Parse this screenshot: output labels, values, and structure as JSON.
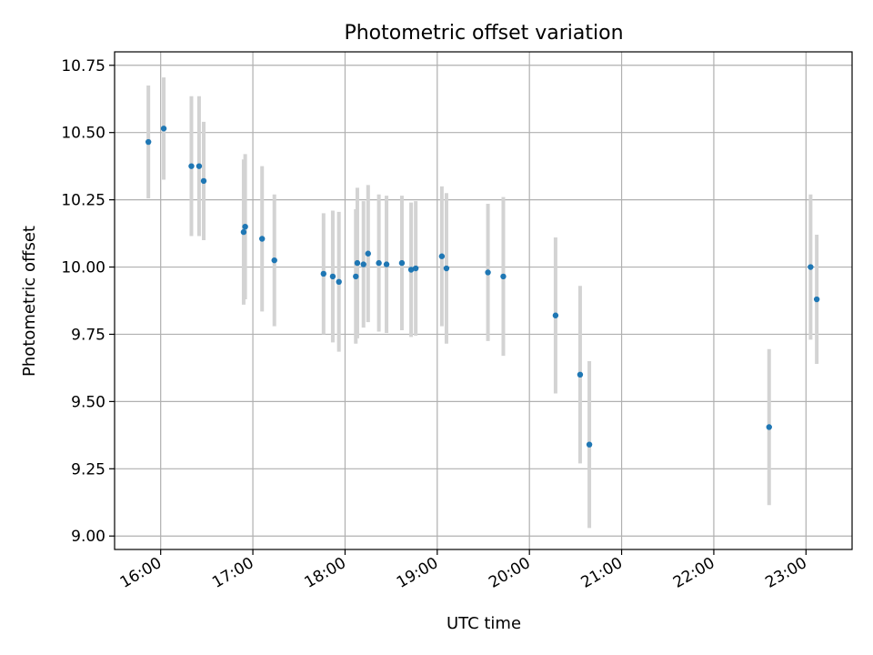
{
  "chart_data": {
    "type": "scatter",
    "title": "Photometric offset variation",
    "xlabel": "UTC time",
    "ylabel": "Photometric offset",
    "x_tick_labels": [
      "16:00",
      "17:00",
      "18:00",
      "19:00",
      "20:00",
      "21:00",
      "22:00",
      "23:00"
    ],
    "y_tick_labels": [
      "9.00",
      "9.25",
      "9.50",
      "9.75",
      "10.00",
      "10.25",
      "10.50",
      "10.75"
    ],
    "xlim": [
      "15:30",
      "23:30"
    ],
    "ylim": [
      8.95,
      10.8
    ],
    "grid": true,
    "colors": {
      "marker": "#1f77b4",
      "errorbar": "#d3d3d3",
      "grid": "#b0b0b0"
    },
    "points": [
      {
        "x": "15:52",
        "y": 10.465,
        "err": 0.21
      },
      {
        "x": "16:02",
        "y": 10.515,
        "err": 0.19
      },
      {
        "x": "16:20",
        "y": 10.375,
        "err": 0.26
      },
      {
        "x": "16:25",
        "y": 10.375,
        "err": 0.26
      },
      {
        "x": "16:28",
        "y": 10.32,
        "err": 0.22
      },
      {
        "x": "16:54",
        "y": 10.13,
        "err": 0.27
      },
      {
        "x": "16:55",
        "y": 10.15,
        "err": 0.27
      },
      {
        "x": "17:06",
        "y": 10.105,
        "err": 0.27
      },
      {
        "x": "17:14",
        "y": 10.025,
        "err": 0.245
      },
      {
        "x": "17:46",
        "y": 9.975,
        "err": 0.225
      },
      {
        "x": "17:52",
        "y": 9.965,
        "err": 0.245
      },
      {
        "x": "17:56",
        "y": 9.945,
        "err": 0.26
      },
      {
        "x": "18:07",
        "y": 9.965,
        "err": 0.25
      },
      {
        "x": "18:08",
        "y": 10.015,
        "err": 0.28
      },
      {
        "x": "18:12",
        "y": 10.01,
        "err": 0.235
      },
      {
        "x": "18:15",
        "y": 10.05,
        "err": 0.255
      },
      {
        "x": "18:22",
        "y": 10.015,
        "err": 0.255
      },
      {
        "x": "18:27",
        "y": 10.01,
        "err": 0.255
      },
      {
        "x": "18:37",
        "y": 10.015,
        "err": 0.25
      },
      {
        "x": "18:43",
        "y": 9.99,
        "err": 0.25
      },
      {
        "x": "18:46",
        "y": 9.995,
        "err": 0.25
      },
      {
        "x": "19:03",
        "y": 10.04,
        "err": 0.26
      },
      {
        "x": "19:06",
        "y": 9.995,
        "err": 0.28
      },
      {
        "x": "19:33",
        "y": 9.98,
        "err": 0.255
      },
      {
        "x": "19:43",
        "y": 9.965,
        "err": 0.295
      },
      {
        "x": "20:17",
        "y": 9.82,
        "err": 0.29
      },
      {
        "x": "20:33",
        "y": 9.6,
        "err": 0.33
      },
      {
        "x": "20:39",
        "y": 9.34,
        "err": 0.31
      },
      {
        "x": "22:36",
        "y": 9.405,
        "err": 0.29
      },
      {
        "x": "23:03",
        "y": 10.0,
        "err": 0.27
      },
      {
        "x": "23:07",
        "y": 9.88,
        "err": 0.24
      }
    ]
  }
}
